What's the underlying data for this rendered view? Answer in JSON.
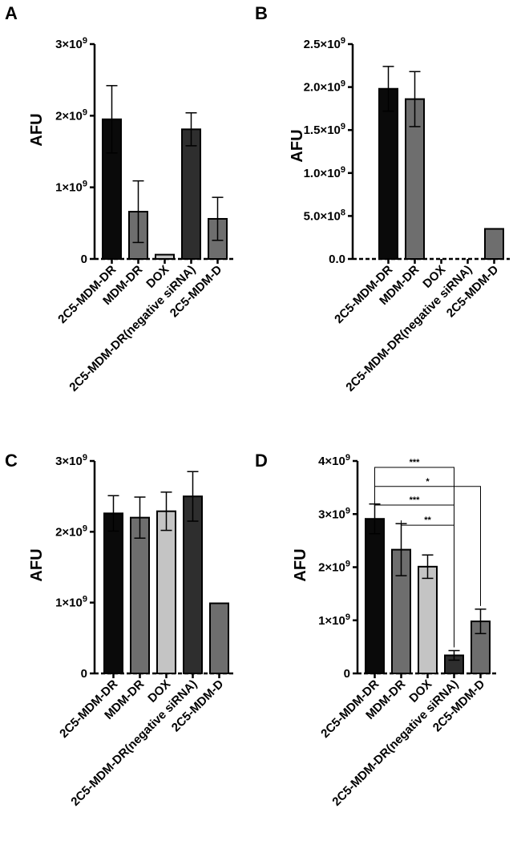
{
  "chart_data": [
    {
      "panel": "A",
      "type": "bar",
      "ylabel": "AFU",
      "categories": [
        "2C5-MDM-DR",
        "MDM-DR",
        "DOX",
        "2C5-MDM-DR(negative siRNA)",
        "2C5-MDM-D"
      ],
      "values": [
        1950000000.0,
        660000000.0,
        60000000.0,
        1810000000.0,
        560000000.0
      ],
      "errors": [
        470000000.0,
        430000000.0,
        0.0,
        230000000.0,
        300000000.0
      ],
      "colors": [
        "#0a0a0a",
        "#6e6e6e",
        "#c4c4c4",
        "#2e2e2e",
        "#6e6e6e"
      ],
      "ylim": [
        0,
        3000000000.0
      ],
      "ticks": [
        0,
        1000000000.0,
        2000000000.0,
        3000000000.0
      ],
      "tick_labels": [
        {
          "base": "0",
          "exp": ""
        },
        {
          "base": "1×10",
          "exp": "9"
        },
        {
          "base": "2×10",
          "exp": "9"
        },
        {
          "base": "3×10",
          "exp": "9"
        }
      ],
      "significance": []
    },
    {
      "panel": "B",
      "type": "bar",
      "ylabel": "AFU",
      "categories": [
        "2C5-MDM-DR",
        "MDM-DR",
        "DOX",
        "2C5-MDM-DR(negative siRNA)",
        "2C5-MDM-D"
      ],
      "values": [
        1980000000.0,
        1860000000.0,
        0,
        0,
        350000000.0
      ],
      "errors": [
        260000000.0,
        320000000.0,
        0,
        0,
        0
      ],
      "colors": [
        "#0a0a0a",
        "#6e6e6e",
        "#c4c4c4",
        "#2e2e2e",
        "#6e6e6e"
      ],
      "ylim": [
        0,
        2500000000.0
      ],
      "ticks": [
        0,
        500000000.0,
        1000000000.0,
        1500000000.0,
        2000000000.0,
        2500000000.0
      ],
      "tick_labels": [
        {
          "base": "0.0",
          "exp": ""
        },
        {
          "base": "5.0×10",
          "exp": "8"
        },
        {
          "base": "1.0×10",
          "exp": "9"
        },
        {
          "base": "1.5×10",
          "exp": "9"
        },
        {
          "base": "2.0×10",
          "exp": "9"
        },
        {
          "base": "2.5×10",
          "exp": "9"
        }
      ],
      "significance": []
    },
    {
      "panel": "C",
      "type": "bar",
      "ylabel": "AFU",
      "categories": [
        "2C5-MDM-DR",
        "MDM-DR",
        "DOX",
        "2C5-MDM-DR(negative siRNA)",
        "2C5-MDM-D"
      ],
      "values": [
        2260000000.0,
        2200000000.0,
        2290000000.0,
        2500000000.0,
        990000000.0
      ],
      "errors": [
        250000000.0,
        290000000.0,
        270000000.0,
        350000000.0,
        0
      ],
      "colors": [
        "#0a0a0a",
        "#6e6e6e",
        "#c4c4c4",
        "#2e2e2e",
        "#6e6e6e"
      ],
      "ylim": [
        0,
        3000000000.0
      ],
      "ticks": [
        0,
        1000000000.0,
        2000000000.0,
        3000000000.0
      ],
      "tick_labels": [
        {
          "base": "0",
          "exp": ""
        },
        {
          "base": "1×10",
          "exp": "9"
        },
        {
          "base": "2×10",
          "exp": "9"
        },
        {
          "base": "3×10",
          "exp": "9"
        }
      ],
      "significance": []
    },
    {
      "panel": "D",
      "type": "bar",
      "ylabel": "AFU",
      "categories": [
        "2C5-MDM-DR",
        "MDM-DR",
        "DOX",
        "2C5-MDM-DR(negative siRNA)",
        "2C5-MDM-D"
      ],
      "values": [
        2910000000.0,
        2330000000.0,
        2010000000.0,
        340000000.0,
        980000000.0
      ],
      "errors": [
        280000000.0,
        490000000.0,
        220000000.0,
        90000000.0,
        230000000.0
      ],
      "colors": [
        "#0a0a0a",
        "#6e6e6e",
        "#c4c4c4",
        "#2e2e2e",
        "#6e6e6e"
      ],
      "ylim": [
        0,
        4000000000.0
      ],
      "ticks": [
        0,
        1000000000.0,
        2000000000.0,
        3000000000.0,
        4000000000.0
      ],
      "tick_labels": [
        {
          "base": "0",
          "exp": ""
        },
        {
          "base": "1×10",
          "exp": "9"
        },
        {
          "base": "2×10",
          "exp": "9"
        },
        {
          "base": "3×10",
          "exp": "9"
        },
        {
          "base": "4×10",
          "exp": "9"
        }
      ],
      "significance": [
        {
          "from": 0,
          "to": 3,
          "label": "***",
          "level": 3880000000.0
        },
        {
          "from": 0,
          "to": 4,
          "label": "*",
          "level": 3520000000.0
        },
        {
          "from": 0,
          "to": 3,
          "label": "***",
          "level": 3170000000.0
        },
        {
          "from": 1,
          "to": 3,
          "label": "**",
          "level": 2790000000.0
        }
      ]
    }
  ]
}
